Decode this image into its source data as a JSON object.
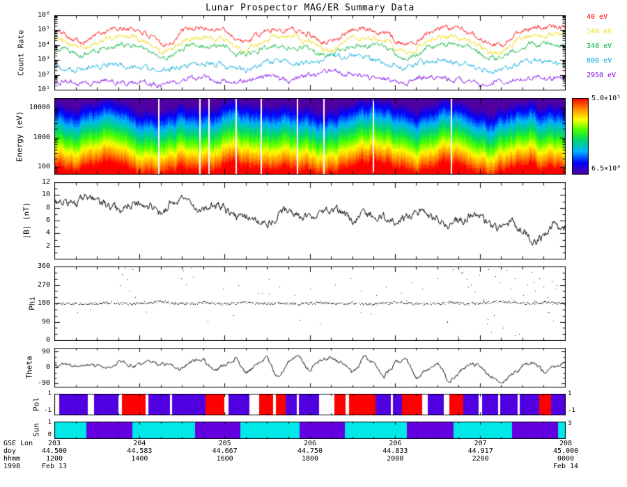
{
  "title": "Lunar Prospector MAG/ER Summary Data",
  "figure": {
    "background": "#ffffff",
    "frame_color": "#000000"
  },
  "x_axis": {
    "major_tick_count": 7,
    "rows": [
      {
        "label": "GSE Lon",
        "values": [
          "203",
          "204",
          "205",
          "206",
          "206",
          "207",
          "208"
        ]
      },
      {
        "label": "doy",
        "values": [
          "44.500",
          "44.583",
          "44.667",
          "44.750",
          "44.833",
          "44.917",
          "45.000"
        ]
      },
      {
        "label": "hhmm",
        "values": [
          "1200",
          "1400",
          "1600",
          "1800",
          "2000",
          "2200",
          "0000"
        ]
      },
      {
        "label": "1998",
        "values": [
          "Feb 13",
          "",
          "",
          "",
          "",
          "",
          "Feb 14"
        ]
      }
    ]
  },
  "chart_data": [
    {
      "id": "count-rate",
      "type": "line",
      "ylabel": "Count Rate",
      "yscale": "log",
      "ylim": [
        10,
        1000000
      ],
      "ytick_labels": [
        "10¹",
        "10²",
        "10³",
        "10⁴",
        "10⁵",
        "10⁶"
      ],
      "ytick_log_values": [
        1,
        2,
        3,
        4,
        5,
        6
      ],
      "series": [
        {
          "name": "40 eV",
          "color": "#ff0000",
          "log10_counts": [
            4.9,
            4.8,
            4.35,
            4.3,
            4.75,
            5.0,
            5.05,
            5.1,
            5.0,
            4.55,
            4.05,
            4.2,
            4.9,
            5.1,
            5.15,
            5.1,
            5.0,
            4.5,
            4.15,
            4.6,
            5.0,
            5.1,
            5.1,
            5.0,
            4.75,
            4.3,
            4.2,
            4.7,
            5.0,
            5.1,
            5.05,
            4.9,
            4.4,
            4.0,
            4.3,
            4.9,
            5.1,
            5.15,
            5.1,
            4.9,
            4.4,
            3.9,
            3.95,
            4.5,
            5.0,
            5.15,
            5.2,
            5.2,
            5.15
          ]
        },
        {
          "name": "140 eV",
          "color": "#eeda00",
          "log10_counts": [
            4.4,
            4.3,
            3.85,
            3.8,
            4.2,
            4.45,
            4.5,
            4.55,
            4.45,
            4.0,
            3.55,
            3.7,
            4.35,
            4.55,
            4.6,
            4.55,
            4.45,
            3.95,
            3.65,
            4.05,
            4.45,
            4.55,
            4.55,
            4.45,
            4.2,
            3.8,
            3.7,
            4.15,
            4.45,
            4.55,
            4.5,
            4.35,
            3.9,
            3.5,
            3.8,
            4.35,
            4.55,
            4.6,
            4.55,
            4.35,
            3.9,
            3.45,
            3.5,
            4.0,
            4.45,
            4.6,
            4.65,
            4.65,
            4.6
          ]
        },
        {
          "name": "340 eV",
          "color": "#00b43c",
          "log10_counts": [
            3.85,
            3.75,
            3.4,
            3.35,
            3.7,
            3.9,
            3.95,
            4.0,
            3.9,
            3.5,
            3.15,
            3.25,
            3.8,
            4.0,
            4.05,
            4.0,
            3.9,
            3.5,
            3.25,
            3.55,
            3.9,
            4.0,
            4.0,
            3.9,
            3.7,
            3.35,
            3.3,
            3.65,
            3.9,
            4.0,
            3.95,
            3.8,
            3.45,
            3.1,
            3.35,
            3.8,
            4.0,
            4.05,
            4.0,
            3.8,
            3.45,
            3.05,
            3.1,
            3.55,
            3.9,
            4.05,
            4.1,
            4.1,
            4.05
          ]
        },
        {
          "name": "800 eV",
          "color": "#00a8d8",
          "log10_counts": [
            2.6,
            2.5,
            2.3,
            2.4,
            2.6,
            2.7,
            2.7,
            2.6,
            2.5,
            2.3,
            2.2,
            2.4,
            2.6,
            2.7,
            2.8,
            2.7,
            2.6,
            2.4,
            2.3,
            2.5,
            2.8,
            2.9,
            2.8,
            2.7,
            2.9,
            3.0,
            3.1,
            3.2,
            3.3,
            3.2,
            3.0,
            2.8,
            2.6,
            2.5,
            2.7,
            2.9,
            3.0,
            2.9,
            2.8,
            2.6,
            2.4,
            2.3,
            2.4,
            2.6,
            2.8,
            2.9,
            2.9,
            2.85,
            2.8
          ]
        },
        {
          "name": "2950 eV",
          "color": "#7d00e6",
          "log10_counts": [
            1.5,
            1.6,
            1.4,
            1.5,
            1.6,
            1.7,
            1.6,
            1.5,
            1.6,
            1.4,
            1.3,
            1.5,
            1.7,
            1.8,
            1.7,
            1.6,
            1.5,
            1.4,
            1.6,
            1.8,
            1.9,
            1.8,
            1.7,
            1.8,
            2.0,
            2.1,
            2.2,
            2.1,
            2.0,
            1.9,
            1.8,
            1.7,
            1.6,
            1.5,
            1.7,
            1.9,
            1.8,
            1.7,
            1.6,
            1.5,
            1.4,
            1.5,
            1.6,
            1.7,
            1.8,
            1.8,
            1.7,
            1.7,
            1.6
          ]
        }
      ]
    },
    {
      "id": "energy-spectrogram",
      "type": "heatmap",
      "ylabel": "Energy (eV)",
      "yscale": "log",
      "ylim": [
        60,
        21000
      ],
      "ytick_labels": [
        "100",
        "1000",
        "10000"
      ],
      "ytick_log_values": [
        2,
        3,
        4
      ],
      "colorbar": {
        "max_label": "5.0×10⁵",
        "min_label": "6.5×10⁰",
        "log_range": [
          0.813,
          5.699
        ]
      },
      "transition_log_energy": [
        3.1,
        3.0,
        2.9,
        3.0,
        3.1,
        3.2,
        3.1,
        3.0,
        2.9,
        2.8,
        2.9,
        3.0,
        3.1,
        3.0,
        2.9,
        3.0,
        3.1,
        3.2,
        3.1,
        3.0,
        2.9,
        3.0,
        3.1,
        3.0,
        2.9,
        2.8,
        2.9,
        3.0,
        3.1,
        3.2,
        3.3,
        3.2,
        3.1,
        3.0,
        2.9,
        3.0,
        3.1,
        3.2,
        3.1,
        3.0,
        2.9,
        2.8,
        2.9,
        3.0,
        3.1,
        3.2,
        3.1,
        3.0,
        3.0
      ],
      "data_gap_fractions": [
        0.205,
        0.285,
        0.302,
        0.356,
        0.404,
        0.476,
        0.527,
        0.624,
        0.776
      ]
    },
    {
      "id": "b-field-magnitude",
      "type": "line",
      "ylabel": "|B| (nT)",
      "ylim": [
        0,
        12
      ],
      "ytick_values": [
        2,
        4,
        6,
        8,
        10,
        12
      ],
      "values_nT": [
        9.5,
        9.0,
        8.6,
        9.8,
        9.2,
        8.0,
        7.6,
        8.6,
        9.0,
        8.2,
        7.0,
        8.8,
        9.4,
        8.0,
        7.2,
        8.4,
        7.8,
        6.6,
        7.0,
        6.0,
        5.6,
        6.6,
        7.4,
        7.0,
        6.2,
        6.8,
        7.8,
        7.2,
        6.0,
        6.6,
        7.0,
        6.4,
        5.8,
        6.6,
        7.4,
        6.8,
        6.0,
        5.2,
        6.0,
        6.8,
        6.2,
        5.0,
        4.4,
        5.6,
        4.8,
        2.6,
        3.6,
        5.6,
        5.0
      ]
    },
    {
      "id": "phi",
      "type": "scatter",
      "ylabel": "Phi",
      "ylim": [
        0,
        360
      ],
      "ytick_values": [
        0,
        90,
        180,
        270,
        360
      ],
      "baseline_deg": [
        178,
        180,
        182,
        179,
        181,
        185,
        180,
        178,
        183,
        186,
        190,
        182,
        179,
        181,
        184,
        180,
        178,
        182,
        186,
        181,
        179,
        183,
        180,
        178,
        182,
        185,
        181,
        179,
        184,
        180,
        178,
        182,
        186,
        183,
        180,
        178,
        181,
        185,
        182,
        179,
        183,
        187,
        190,
        185,
        180,
        183,
        186,
        182,
        180
      ],
      "outliers": [
        [
          0.128,
          268
        ],
        [
          0.133,
          322
        ],
        [
          0.138,
          354
        ],
        [
          0.143,
          298
        ],
        [
          0.148,
          241
        ],
        [
          0.153,
          348
        ],
        [
          0.158,
          210
        ],
        [
          0.248,
          302
        ],
        [
          0.252,
          338
        ],
        [
          0.258,
          272
        ],
        [
          0.268,
          352
        ],
        [
          0.272,
          310
        ],
        [
          0.3,
          92
        ],
        [
          0.33,
          250
        ],
        [
          0.36,
          268
        ],
        [
          0.4,
          232
        ],
        [
          0.42,
          300
        ],
        [
          0.44,
          262
        ],
        [
          0.47,
          222
        ],
        [
          0.5,
          252
        ],
        [
          0.52,
          82
        ],
        [
          0.55,
          272
        ],
        [
          0.58,
          302
        ],
        [
          0.6,
          242
        ],
        [
          0.63,
          222
        ],
        [
          0.65,
          262
        ],
        [
          0.68,
          232
        ],
        [
          0.7,
          282
        ],
        [
          0.72,
          252
        ],
        [
          0.75,
          302
        ],
        [
          0.77,
          92
        ],
        [
          0.78,
          348
        ],
        [
          0.79,
          22
        ],
        [
          0.8,
          332
        ],
        [
          0.808,
          300
        ],
        [
          0.816,
          272
        ],
        [
          0.824,
          238
        ],
        [
          0.832,
          318
        ],
        [
          0.84,
          202
        ],
        [
          0.848,
          102
        ],
        [
          0.856,
          42
        ],
        [
          0.864,
          312
        ],
        [
          0.872,
          282
        ],
        [
          0.878,
          62
        ],
        [
          0.886,
          342
        ],
        [
          0.894,
          252
        ],
        [
          0.902,
          302
        ],
        [
          0.91,
          32
        ],
        [
          0.918,
          222
        ],
        [
          0.926,
          272
        ],
        [
          0.934,
          332
        ],
        [
          0.942,
          242
        ],
        [
          0.95,
          302
        ],
        [
          0.958,
          262
        ],
        [
          0.966,
          212
        ],
        [
          0.974,
          288
        ],
        [
          0.982,
          250
        ],
        [
          0.07,
          148
        ],
        [
          0.18,
          140
        ],
        [
          0.35,
          122
        ],
        [
          0.48,
          100
        ],
        [
          0.62,
          128
        ],
        [
          0.77,
          88
        ]
      ]
    },
    {
      "id": "theta",
      "type": "line",
      "ylabel": "Theta",
      "ylim": [
        -112,
        112
      ],
      "ytick_values": [
        -90,
        0,
        90
      ],
      "values_deg": [
        10,
        15,
        5,
        20,
        10,
        0,
        25,
        15,
        10,
        30,
        20,
        10,
        -5,
        40,
        50,
        -20,
        10,
        60,
        -40,
        20,
        55,
        -60,
        30,
        65,
        -20,
        45,
        60,
        20,
        -35,
        55,
        30,
        -45,
        20,
        45,
        -70,
        -20,
        35,
        -85,
        -35,
        25,
        10,
        -60,
        -88,
        -40,
        10,
        30,
        -25,
        5,
        20
      ]
    },
    {
      "id": "pol",
      "type": "strip",
      "ylabel": "Pol",
      "axis_labels": {
        "left_top": "1",
        "left_bottom": "-1",
        "right_top": "1",
        "right_bottom": "-1"
      },
      "colors": {
        "R": "#ff0000",
        "B": "#5000e0",
        "W": "#ffffff"
      },
      "segments": [
        [
          0.0,
          0.01,
          "W"
        ],
        [
          0.01,
          0.065,
          "B"
        ],
        [
          0.065,
          0.078,
          "W"
        ],
        [
          0.078,
          0.125,
          "B"
        ],
        [
          0.125,
          0.132,
          "W"
        ],
        [
          0.132,
          0.178,
          "R"
        ],
        [
          0.178,
          0.184,
          "W"
        ],
        [
          0.184,
          0.226,
          "B"
        ],
        [
          0.226,
          0.23,
          "W"
        ],
        [
          0.23,
          0.296,
          "B"
        ],
        [
          0.296,
          0.332,
          "R"
        ],
        [
          0.332,
          0.34,
          "W"
        ],
        [
          0.34,
          0.382,
          "B"
        ],
        [
          0.382,
          0.4,
          "W"
        ],
        [
          0.4,
          0.428,
          "R"
        ],
        [
          0.428,
          0.433,
          "W"
        ],
        [
          0.433,
          0.452,
          "R"
        ],
        [
          0.452,
          0.474,
          "B"
        ],
        [
          0.474,
          0.478,
          "W"
        ],
        [
          0.478,
          0.518,
          "B"
        ],
        [
          0.518,
          0.548,
          "W"
        ],
        [
          0.548,
          0.57,
          "R"
        ],
        [
          0.57,
          0.576,
          "W"
        ],
        [
          0.576,
          0.628,
          "R"
        ],
        [
          0.628,
          0.658,
          "B"
        ],
        [
          0.658,
          0.662,
          "W"
        ],
        [
          0.662,
          0.68,
          "B"
        ],
        [
          0.68,
          0.72,
          "R"
        ],
        [
          0.72,
          0.73,
          "W"
        ],
        [
          0.73,
          0.762,
          "B"
        ],
        [
          0.762,
          0.772,
          "W"
        ],
        [
          0.772,
          0.8,
          "R"
        ],
        [
          0.8,
          0.83,
          "B"
        ],
        [
          0.83,
          0.836,
          "W"
        ],
        [
          0.836,
          0.868,
          "B"
        ],
        [
          0.868,
          0.872,
          "W"
        ],
        [
          0.872,
          0.906,
          "B"
        ],
        [
          0.906,
          0.91,
          "W"
        ],
        [
          0.91,
          0.948,
          "B"
        ],
        [
          0.948,
          0.972,
          "R"
        ],
        [
          0.972,
          1.0,
          "B"
        ]
      ]
    },
    {
      "id": "sun",
      "type": "strip",
      "ylabel": "Sun",
      "axis_labels": {
        "left_top": "1",
        "left_bottom": "0",
        "right_top": "3"
      },
      "colors": {
        "C": "#00e8e8",
        "P": "#6400e0"
      },
      "segments": [
        [
          0.0,
          0.062,
          "C"
        ],
        [
          0.062,
          0.152,
          "P"
        ],
        [
          0.152,
          0.275,
          "C"
        ],
        [
          0.275,
          0.364,
          "P"
        ],
        [
          0.364,
          0.48,
          "C"
        ],
        [
          0.48,
          0.568,
          "P"
        ],
        [
          0.568,
          0.69,
          "C"
        ],
        [
          0.69,
          0.78,
          "P"
        ],
        [
          0.78,
          0.895,
          "C"
        ],
        [
          0.895,
          0.985,
          "P"
        ],
        [
          0.985,
          1.0,
          "C"
        ]
      ]
    }
  ]
}
